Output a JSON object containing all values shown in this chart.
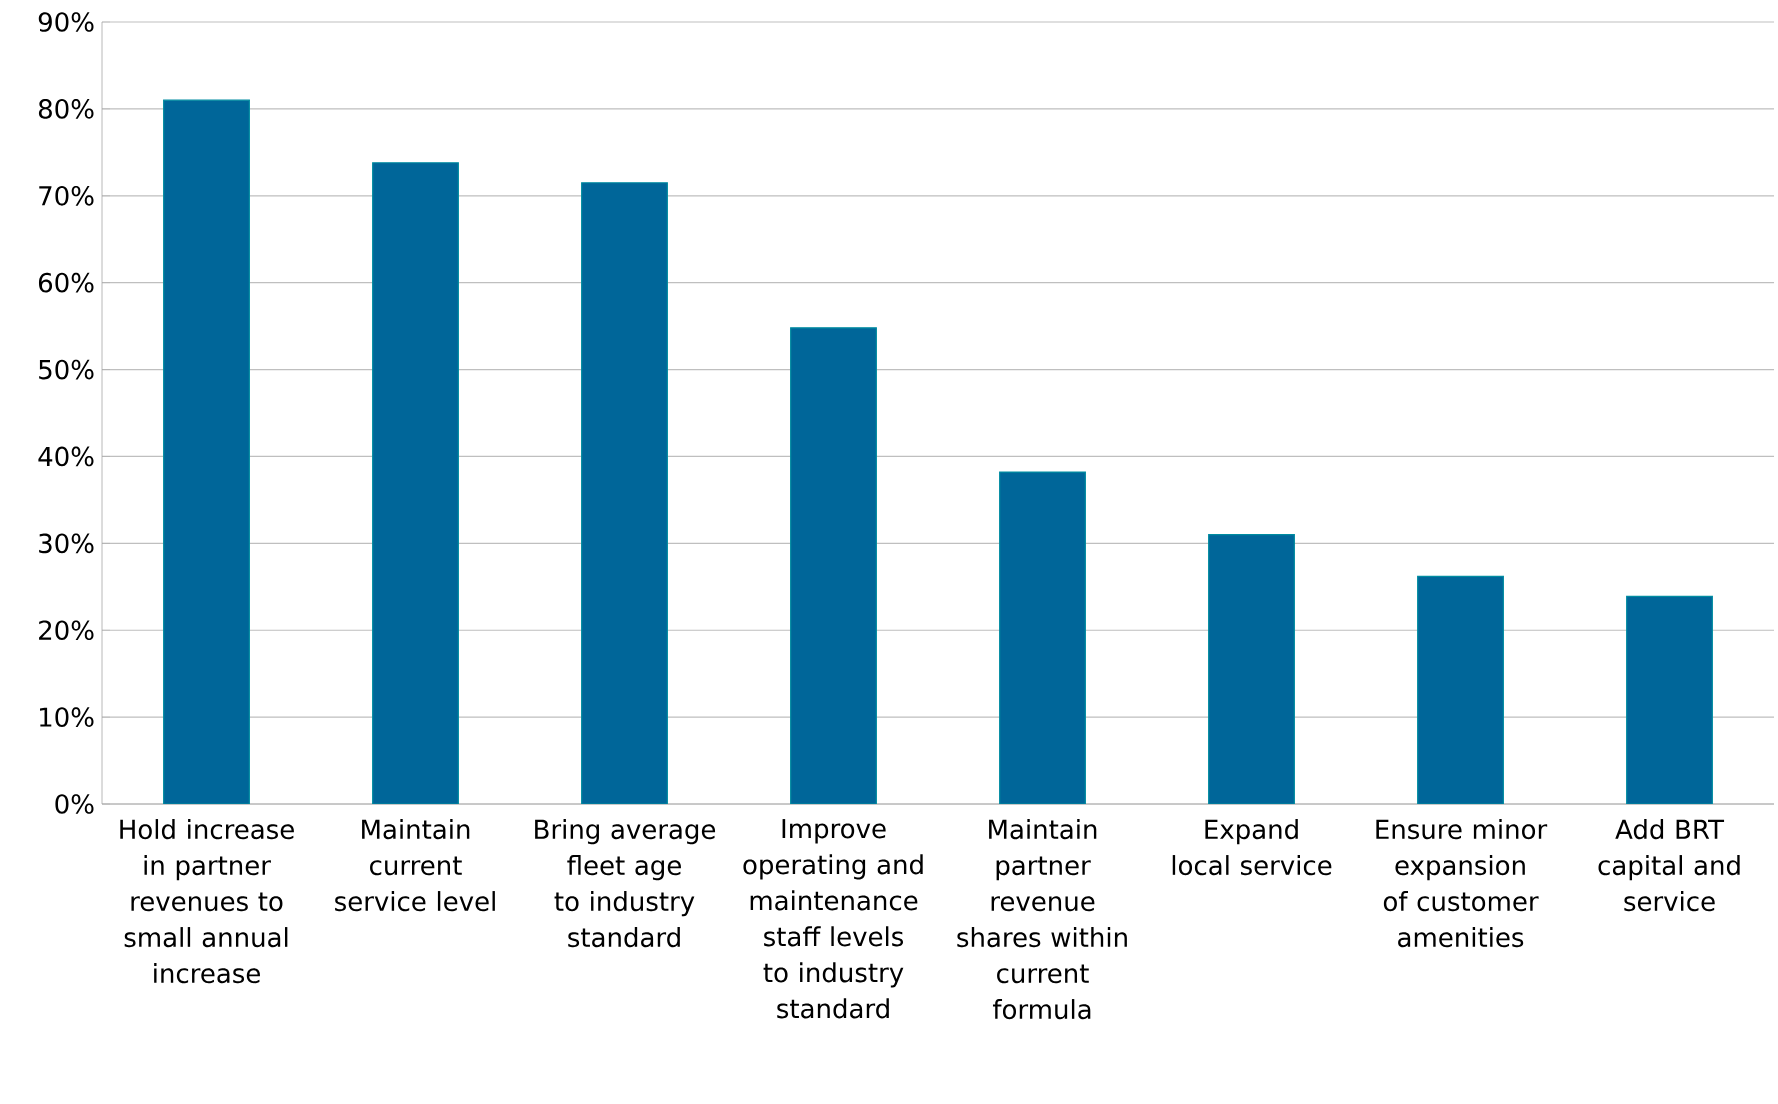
{
  "chart_data": {
    "type": "bar",
    "categories": [
      "Hold increase in partner revenues to small annual increase",
      "Maintain current service level",
      "Bring average fleet age to industry standard",
      "Improve operating and maintenance staff levels to industry standard",
      "Maintain partner revenue shares within current formula",
      "Expand local service",
      "Ensure minor expansion of customer amenities",
      "Add BRT capital and service"
    ],
    "values": [
      81,
      73.8,
      71.5,
      54.8,
      38.2,
      31,
      26.2,
      23.9
    ],
    "color": "#006699",
    "ylim": [
      0,
      90
    ],
    "yticks": [
      {
        "value": 0,
        "label": "0%"
      },
      {
        "value": 10,
        "label": "10%"
      },
      {
        "value": 20,
        "label": "20%"
      },
      {
        "value": 30,
        "label": "30%"
      },
      {
        "value": 40,
        "label": "40%"
      },
      {
        "value": 50,
        "label": "50%"
      },
      {
        "value": 60,
        "label": "60%"
      },
      {
        "value": 70,
        "label": "70%"
      },
      {
        "value": 80,
        "label": "80%"
      },
      {
        "value": 90,
        "label": "90%"
      }
    ],
    "grid": "y"
  }
}
